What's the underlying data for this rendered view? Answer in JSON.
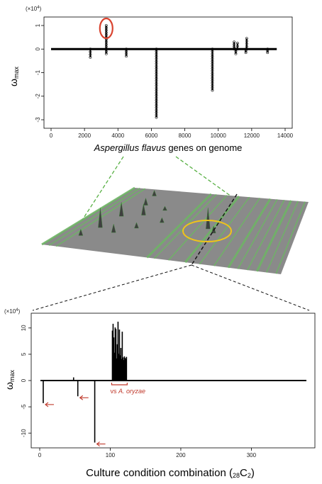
{
  "chart_data": [
    {
      "type": "scatter",
      "xlabel_species": "Aspergillus flavus",
      "xlabel_rest": " genes on genome",
      "ylabel": "ω",
      "ylabel_sub": "max",
      "y_multiplier_base": "(×10",
      "y_multiplier_exp": "4",
      "y_multiplier_close": ")",
      "xlim": [
        0,
        14000
      ],
      "ylim": [
        -3,
        1
      ],
      "xticks": [
        0,
        2000,
        4000,
        6000,
        8000,
        10000,
        12000,
        14000
      ],
      "yticks": [
        1,
        0,
        -1,
        -2,
        -3
      ],
      "spikes": [
        {
          "x": 3300,
          "y": 1.0
        },
        {
          "x": 3300,
          "y": -0.2
        },
        {
          "x": 2350,
          "y": -0.35
        },
        {
          "x": 4500,
          "y": -0.3
        },
        {
          "x": 6300,
          "y": -2.9
        },
        {
          "x": 9650,
          "y": -1.75
        },
        {
          "x": 10950,
          "y": 0.3
        },
        {
          "x": 11150,
          "y": 0.25
        },
        {
          "x": 11700,
          "y": 0.45
        },
        {
          "x": 11050,
          "y": -0.2
        },
        {
          "x": 11650,
          "y": -0.15
        },
        {
          "x": 12950,
          "y": -0.15
        }
      ],
      "highlight": {
        "x": 3300,
        "y": 1.0,
        "color": "#d9432f"
      }
    },
    {
      "type": "bar",
      "xlabel_main": "Culture condition combination (",
      "xlabel_pre": "28",
      "xlabel_letter": "C",
      "xlabel_post": "2",
      "xlabel_close": ")",
      "ylabel": "ω",
      "ylabel_sub": "max",
      "y_multiplier_base": "(×10",
      "y_multiplier_exp": "4",
      "y_multiplier_close": ")",
      "xlim": [
        0,
        378
      ],
      "ylim": [
        -12,
        12
      ],
      "xticks": [
        0,
        100,
        200,
        300
      ],
      "yticks": [
        10,
        5,
        0,
        -5,
        -10
      ],
      "bars": [
        {
          "x": 5,
          "y": -4.3
        },
        {
          "x": 48,
          "y": 0.6
        },
        {
          "x": 54,
          "y": -3.0
        },
        {
          "x": 78,
          "y": -11.8
        },
        {
          "x": 103,
          "y": 9.5
        },
        {
          "x": 104,
          "y": 10.8
        },
        {
          "x": 105,
          "y": 8.2
        },
        {
          "x": 106,
          "y": 5.3
        },
        {
          "x": 107,
          "y": 10.1
        },
        {
          "x": 108,
          "y": 9.8
        },
        {
          "x": 109,
          "y": 4.2
        },
        {
          "x": 110,
          "y": 6.9
        },
        {
          "x": 111,
          "y": 11.2
        },
        {
          "x": 112,
          "y": 5.1
        },
        {
          "x": 113,
          "y": 9.7
        },
        {
          "x": 114,
          "y": 4.8
        },
        {
          "x": 115,
          "y": 6.2
        },
        {
          "x": 116,
          "y": 4.1
        },
        {
          "x": 117,
          "y": 9.3
        },
        {
          "x": 118,
          "y": 4.4
        },
        {
          "x": 119,
          "y": 3.9
        },
        {
          "x": 120,
          "y": 4.6
        },
        {
          "x": 121,
          "y": 4.3
        },
        {
          "x": 122,
          "y": 4.1
        },
        {
          "x": 123,
          "y": 4.5
        }
      ],
      "bracket_label_prefix": "vs ",
      "bracket_label_species": "A. oryzae",
      "bracket_range": [
        102,
        124
      ],
      "arrow_targets": [
        {
          "x": 5,
          "y": -4.3
        },
        {
          "x": 54,
          "y": -3.0
        },
        {
          "x": 78,
          "y": -11.8
        }
      ],
      "annotation_color": "#c0392b"
    }
  ],
  "colors": {
    "surface_gray": "#8a8a8a",
    "surface_green": "#6fb466",
    "connector_green": "#58b044",
    "ellipse": "#f0c419",
    "highlight": "#d9432f"
  }
}
